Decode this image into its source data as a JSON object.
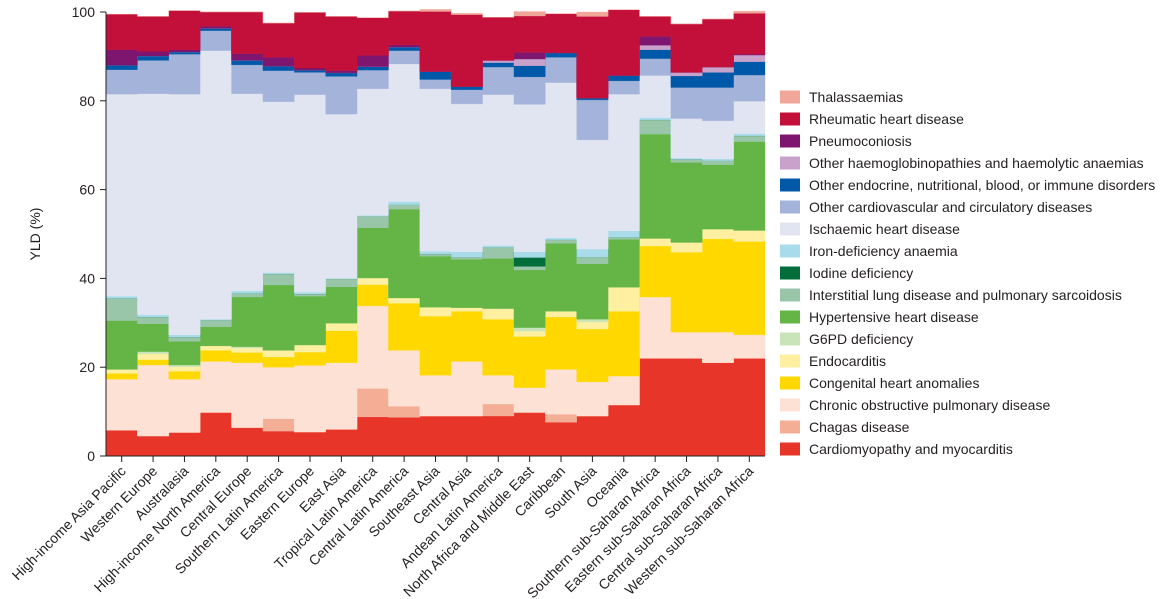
{
  "chart_data": {
    "type": "area",
    "stacked": true,
    "title": "",
    "xlabel": "",
    "ylabel": "YLD (%)",
    "ylim": [
      0,
      100
    ],
    "yticks": [
      0,
      20,
      40,
      60,
      80,
      100
    ],
    "grid": false,
    "legend_position": "right",
    "categories": [
      "High-income Asia Pacific",
      "Western Europe",
      "Australasia",
      "High-income North America",
      "Central Europe",
      "Southern Latin America",
      "Eastern Europe",
      "East Asia",
      "Tropical Latin America",
      "Central Latin America",
      "Southeast Asia",
      "Central Asia",
      "Andean Latin America",
      "North Africa and Middle East",
      "Caribbean",
      "South Asia",
      "Oceania",
      "Southern sub-Saharan Africa",
      "Eastern sub-Saharan Africa",
      "Central sub-Saharan Africa",
      "Western sub-Saharan Africa"
    ],
    "series": [
      {
        "name": "Cardiomyopathy and myocarditis",
        "color": "#e8352a",
        "values": [
          5.8,
          4.5,
          5.3,
          9.8,
          6.4,
          5.6,
          5.4,
          6.0,
          8.8,
          8.7,
          9.0,
          9.0,
          9.0,
          9.8,
          7.6,
          9.0,
          11.5,
          22.0,
          22.0,
          21.0,
          22.0
        ]
      },
      {
        "name": "Chagas disease",
        "color": "#f4ae96",
        "values": [
          0,
          0,
          0,
          0,
          0,
          2.8,
          0,
          0,
          6.4,
          2.5,
          0,
          0,
          2.7,
          0,
          1.8,
          0,
          0,
          0,
          0,
          0,
          0
        ]
      },
      {
        "name": "Chronic obstructive pulmonary disease",
        "color": "#fde1d4",
        "values": [
          11.5,
          16.0,
          12.0,
          11.5,
          14.6,
          11.6,
          15.0,
          15.0,
          18.6,
          12.6,
          9.2,
          12.3,
          6.5,
          5.6,
          10.1,
          7.7,
          6.5,
          13.8,
          5.9,
          6.9,
          5.3
        ]
      },
      {
        "name": "Congenital heart anomalies",
        "color": "#ffd800",
        "values": [
          1.3,
          1.2,
          1.8,
          2.5,
          2.3,
          2.3,
          3.0,
          7.2,
          4.8,
          10.6,
          13.3,
          11.3,
          12.6,
          11.5,
          11.8,
          11.9,
          14.6,
          11.5,
          18.0,
          21.0,
          21.0
        ]
      },
      {
        "name": "Endocarditis",
        "color": "#fef0a0",
        "values": [
          0.9,
          1.3,
          1.0,
          1.0,
          1.0,
          1.5,
          1.6,
          1.7,
          1.5,
          1.2,
          2.0,
          0.8,
          2.4,
          1.2,
          1.3,
          1.6,
          5.4,
          1.7,
          2.2,
          2.2,
          2.5
        ]
      },
      {
        "name": "G6PD deficiency",
        "color": "#c9e4b8",
        "values": [
          0,
          0.5,
          0.4,
          0,
          0.3,
          0,
          0,
          0,
          0,
          0,
          0,
          0,
          0,
          0.8,
          0,
          0.6,
          0,
          0,
          0,
          0,
          0
        ]
      },
      {
        "name": "Hypertensive heart disease",
        "color": "#64b545",
        "values": [
          11.0,
          6.3,
          5.3,
          4.3,
          11.2,
          14.7,
          11.0,
          8.2,
          11.3,
          20.0,
          11.5,
          10.9,
          11.3,
          13.0,
          15.3,
          12.5,
          10.8,
          23.5,
          18.0,
          14.5,
          20.0
        ]
      },
      {
        "name": "Interstitial lung disease and pulmonary sarcoidosis",
        "color": "#99c6a8",
        "values": [
          5.0,
          1.5,
          1.0,
          1.5,
          0.8,
          2.5,
          0.5,
          1.8,
          2.6,
          1.0,
          0.5,
          0.5,
          2.5,
          0.8,
          0.8,
          1.5,
          0.5,
          3.2,
          0.7,
          0.9,
          1.3
        ]
      },
      {
        "name": "Iodine deficiency",
        "color": "#006d3a",
        "values": [
          0,
          0,
          0,
          0,
          0,
          0,
          0,
          0,
          0,
          0,
          0,
          0,
          0,
          2.0,
          0,
          0,
          0,
          0,
          0,
          0,
          0
        ]
      },
      {
        "name": "Iron-deficiency anaemia",
        "color": "#a8dcea",
        "values": [
          0.5,
          0.5,
          0.5,
          0.2,
          0.6,
          0.3,
          0.4,
          0.1,
          0.2,
          0.7,
          0.6,
          1.2,
          0.4,
          1.3,
          0.4,
          1.8,
          1.4,
          0.5,
          0.3,
          0.4,
          0.5
        ]
      },
      {
        "name": "Ischaemic heart disease",
        "color": "#e1e5f1",
        "values": [
          45.5,
          49.8,
          54.2,
          60.5,
          44.4,
          38.5,
          44.5,
          37.0,
          28.5,
          31.0,
          36.6,
          33.3,
          34.0,
          33.2,
          35.0,
          24.6,
          30.8,
          9.5,
          8.9,
          8.6,
          7.3
        ]
      },
      {
        "name": "Other cardiovascular and circulatory diseases",
        "color": "#a4b3d9",
        "values": [
          5.5,
          7.5,
          9.0,
          4.5,
          6.5,
          7.0,
          5.0,
          8.5,
          4.2,
          3.0,
          2.1,
          3.2,
          6.2,
          6.2,
          5.7,
          9.0,
          3.0,
          3.8,
          7.0,
          7.5,
          5.9
        ]
      },
      {
        "name": "Other endocrine, nutritional, blood, or immune disorders",
        "color": "#0059a8",
        "values": [
          1.0,
          1.0,
          0.5,
          0.5,
          1.0,
          1.0,
          0.5,
          0.8,
          0.8,
          0.8,
          1.8,
          0.7,
          1.0,
          2.5,
          1.0,
          0.4,
          1.2,
          2.0,
          2.6,
          3.4,
          3.0
        ]
      },
      {
        "name": "Other haemoglobinopathies and haemolytic anaemias",
        "color": "#c9a2cb",
        "values": [
          0,
          0,
          0,
          0,
          0,
          0,
          0,
          0,
          0,
          0,
          0,
          0,
          0.5,
          1.5,
          0,
          0,
          0,
          1.0,
          0.8,
          1.2,
          1.5
        ]
      },
      {
        "name": "Pneumoconiosis",
        "color": "#7e166f",
        "values": [
          3.5,
          1.0,
          0.5,
          0.5,
          1.5,
          2.0,
          0.5,
          0.5,
          2.5,
          0.5,
          0,
          0,
          0,
          1.5,
          0,
          0,
          0,
          2.0,
          0,
          0,
          0.2
        ]
      },
      {
        "name": "Rheumatic heart disease",
        "color": "#c3103a",
        "values": [
          8.0,
          7.9,
          8.8,
          3.2,
          9.4,
          7.7,
          12.5,
          12.2,
          8.5,
          7.6,
          13.5,
          16.2,
          9.7,
          8.2,
          8.8,
          18.4,
          14.8,
          4.5,
          10.9,
          10.8,
          9.2
        ]
      },
      {
        "name": "Thalassaemias",
        "color": "#f0a79a",
        "values": [
          0,
          0,
          0,
          0,
          0,
          0,
          0,
          0,
          0,
          0,
          0.5,
          0.3,
          0,
          1.0,
          0,
          1.0,
          0,
          0,
          0,
          0,
          0.5
        ]
      }
    ]
  }
}
